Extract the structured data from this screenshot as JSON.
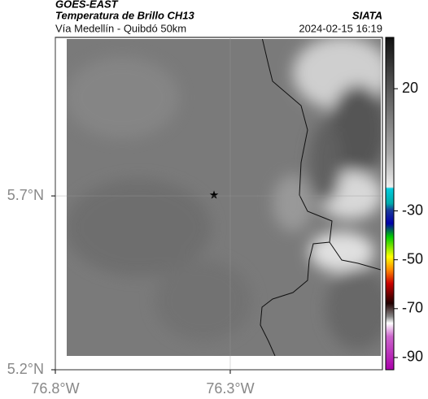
{
  "header": {
    "source": "GOES-EAST",
    "title": "Temperatura de Brillo CH13",
    "org": "SIATA",
    "subtitle": "Vía Medellín - Quibdó 50km",
    "datetime": "2024-02-15 16:19"
  },
  "map": {
    "xlim": [
      -76.8,
      -75.865
    ],
    "ylim": [
      5.2,
      6.156
    ],
    "xticks": [
      {
        "value": -76.8,
        "label": "76.8°W"
      },
      {
        "value": -76.3,
        "label": "76.3°W"
      }
    ],
    "yticks": [
      {
        "value": 5.7,
        "label": "5.7°N"
      },
      {
        "value": 5.2,
        "label": "5.2°N"
      }
    ],
    "grid": true
  },
  "colorbar": {
    "clim": [
      -95,
      41
    ],
    "ticks": [
      20,
      -30,
      -50,
      -70,
      -90
    ]
  }
}
